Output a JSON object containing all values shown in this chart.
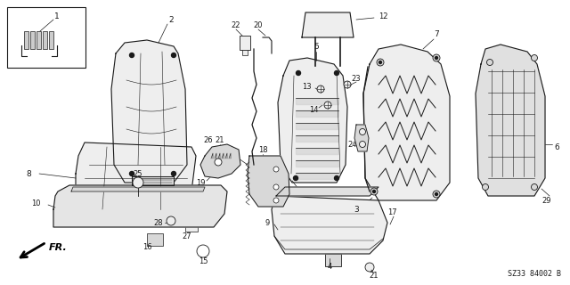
{
  "part_code": "SZ33 84002 B",
  "bg_color": "#ffffff",
  "line_color": "#1a1a1a",
  "gray_fill": "#d8d8d8",
  "light_gray": "#eeeeee"
}
